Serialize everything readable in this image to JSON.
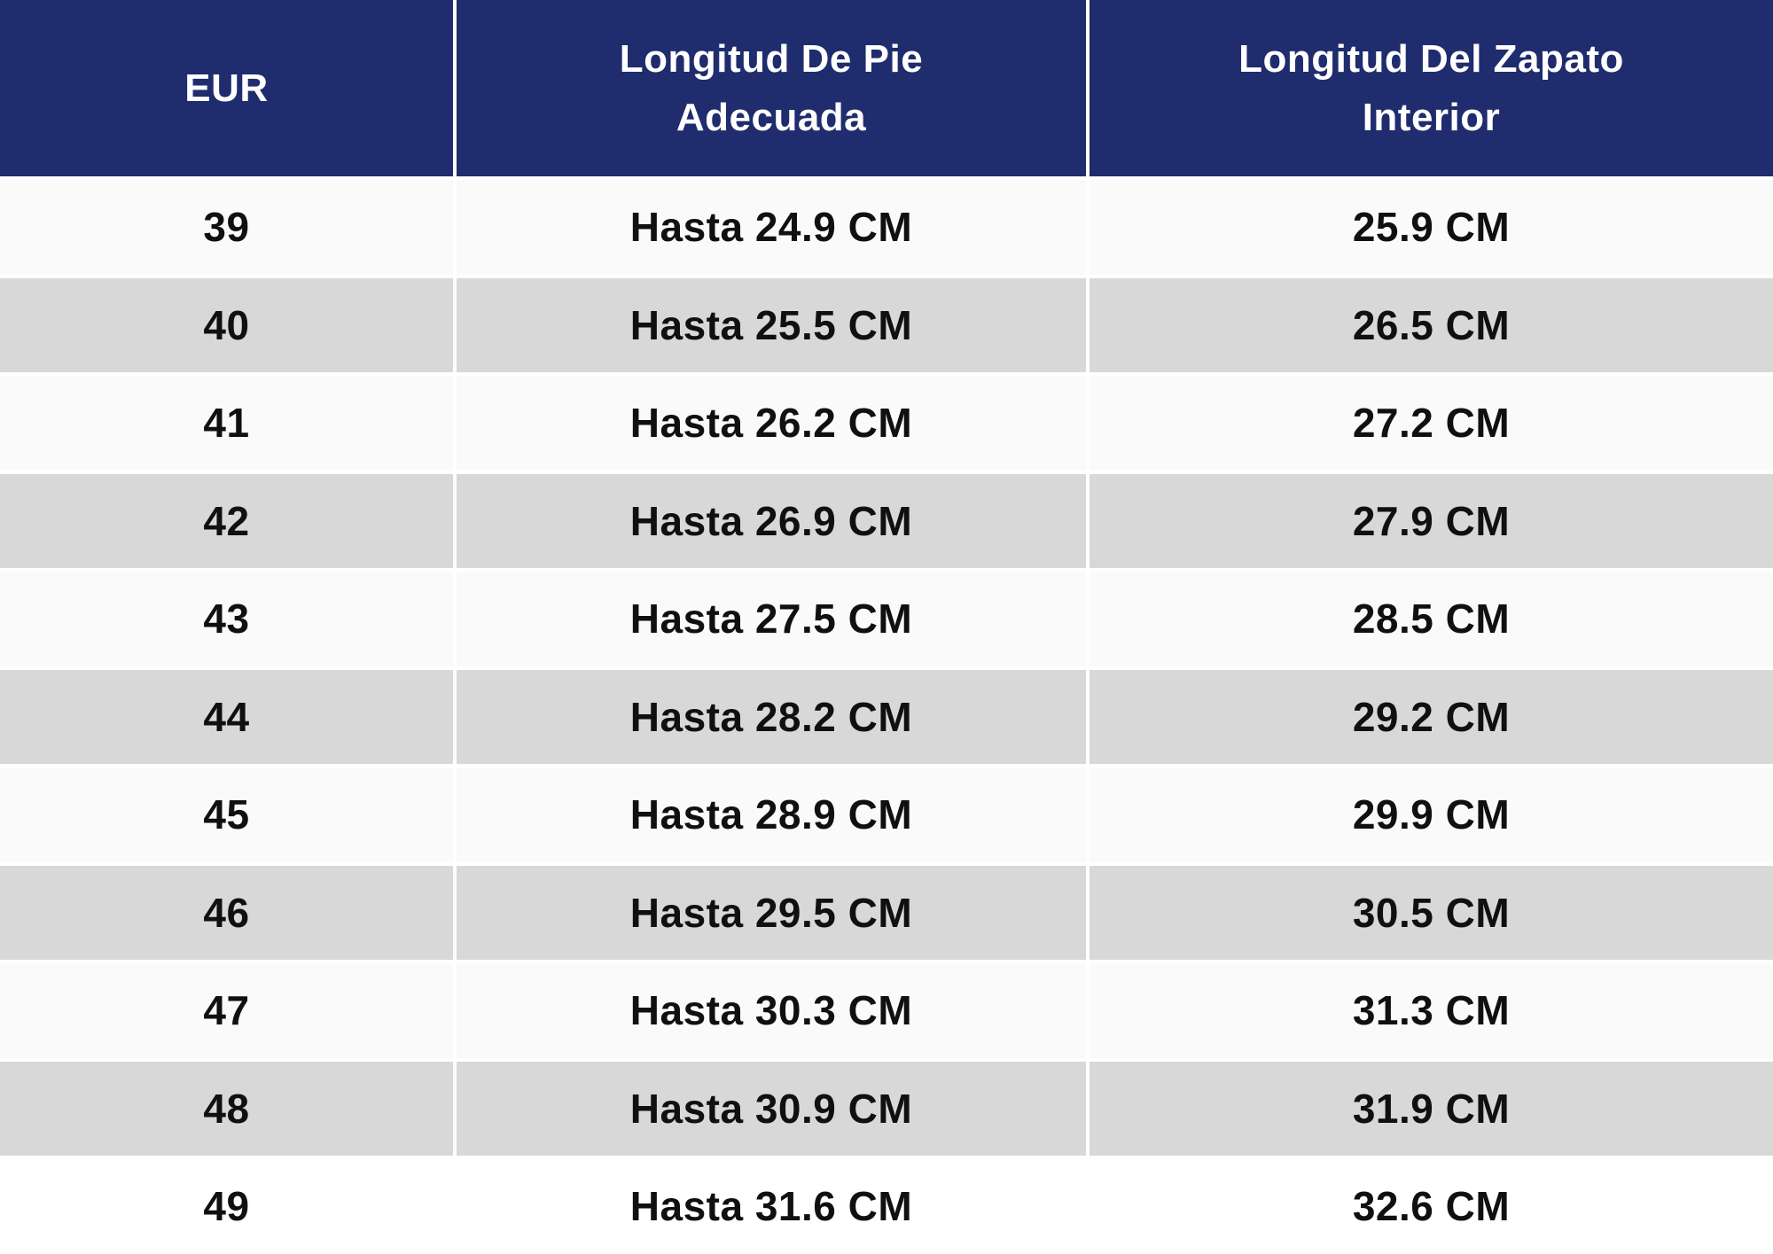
{
  "chart_data": {
    "type": "table",
    "columns": [
      "EUR",
      "Longitud De Pie Adecuada",
      "Longitud Del Zapato Interior"
    ],
    "rows": [
      [
        "39",
        "Hasta 24.9 CM",
        "25.9 CM"
      ],
      [
        "40",
        "Hasta 25.5 CM",
        "26.5 CM"
      ],
      [
        "41",
        "Hasta 26.2 CM",
        "27.2 CM"
      ],
      [
        "42",
        "Hasta 26.9 CM",
        "27.9 CM"
      ],
      [
        "43",
        "Hasta 27.5 CM",
        "28.5 CM"
      ],
      [
        "44",
        "Hasta 28.2 CM",
        "29.2 CM"
      ],
      [
        "45",
        "Hasta 28.9 CM",
        "29.9 CM"
      ],
      [
        "46",
        "Hasta 29.5 CM",
        "30.5 CM"
      ],
      [
        "47",
        "Hasta 30.3 CM",
        "31.3 CM"
      ],
      [
        "48",
        "Hasta 30.9 CM",
        "31.9 CM"
      ],
      [
        "49",
        "Hasta 31.6 CM",
        "32.6 CM"
      ]
    ],
    "layout": {
      "header_position": "top",
      "row_striping": "alternating",
      "grid": "white separator lines between rows and columns"
    }
  },
  "colors": {
    "header_bg": "#1F2C6D",
    "row_light": "#FAFAFA",
    "row_dark": "#D8D8D8",
    "separator": "#FFFFFF",
    "header_text": "#FFFFFF",
    "cell_text": "#101010"
  }
}
